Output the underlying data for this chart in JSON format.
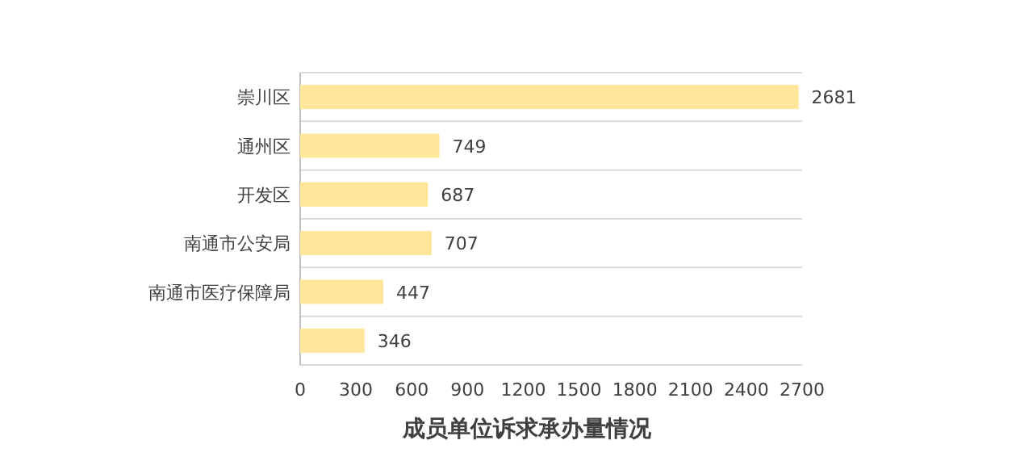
{
  "chart_data": {
    "type": "bar",
    "orientation": "horizontal",
    "title": "成员单位诉求承办量情况",
    "categories": [
      "崇川区",
      "通州区",
      "开发区",
      "南通市公安局",
      "南通市医疗保障局",
      null
    ],
    "values": [
      2681,
      749,
      687,
      707,
      447,
      346
    ],
    "color": "#ffe699",
    "xlim": [
      0,
      2700
    ],
    "xticks": [
      0,
      300,
      600,
      900,
      1200,
      1500,
      1800,
      2100,
      2400,
      2700
    ],
    "data_labels": true,
    "grid": "y"
  }
}
